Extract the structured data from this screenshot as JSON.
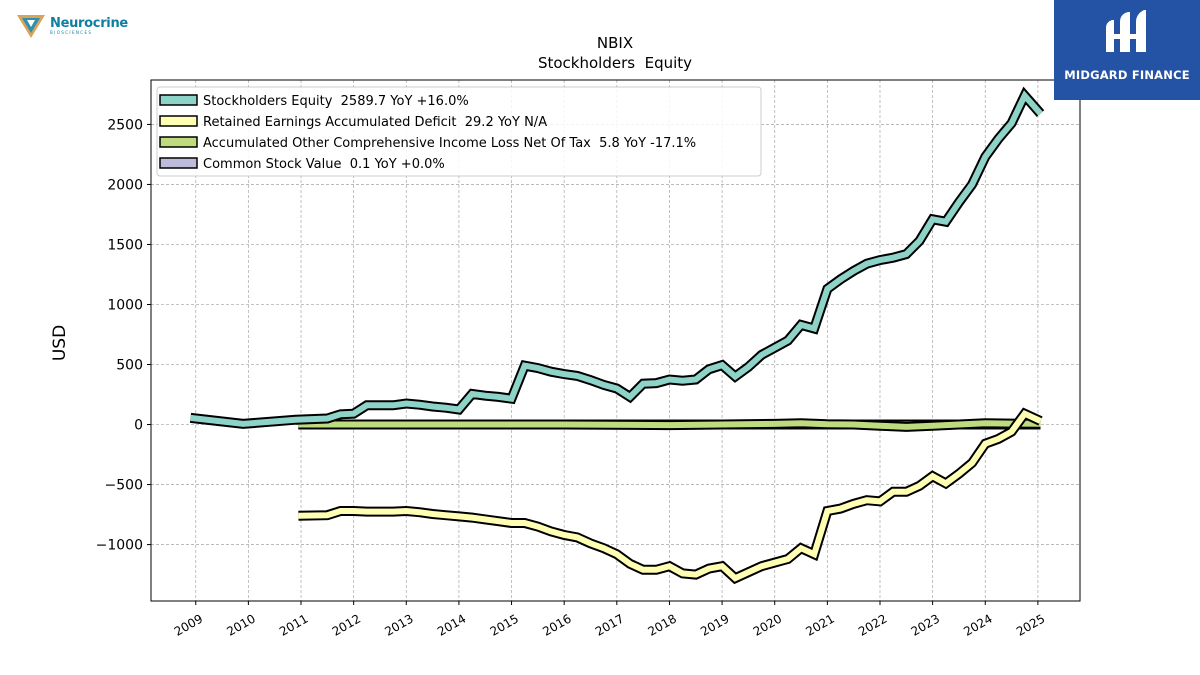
{
  "header": {
    "left_logo_name": "Neurocrine",
    "left_logo_sub": "BIOSCIENCES",
    "right_logo_name": "MIDGARD FINANCE"
  },
  "chart_data": {
    "type": "line",
    "title": "NBIX",
    "subtitle": "Stockholders  Equity",
    "ylabel": "USD",
    "xlabel": "",
    "ylim": [
      -1470,
      2870
    ],
    "xlim": [
      2008.15,
      2025.8
    ],
    "yticks": [
      -1000,
      -500,
      0,
      500,
      1000,
      1500,
      2000,
      2500
    ],
    "ytick_labels": [
      "−1000",
      "−500",
      "0",
      "500",
      "1000",
      "1500",
      "2000",
      "2500"
    ],
    "xticks": [
      "2009",
      "2010",
      "2011",
      "2012",
      "2013",
      "2014",
      "2015",
      "2016",
      "2017",
      "2018",
      "2019",
      "2020",
      "2021",
      "2022",
      "2023",
      "2024",
      "2025"
    ],
    "grid": true,
    "legend_position": "top-left",
    "series": [
      {
        "name": "Stockholders Equity",
        "legend": "Stockholders Equity  2589.7 YoY +16.0%",
        "color": "#8dd3c7",
        "x": [
          2008.9,
          2009.9,
          2010.9,
          2011.5,
          2011.75,
          2012.0,
          2012.25,
          2012.5,
          2012.75,
          2013.0,
          2013.25,
          2013.5,
          2013.75,
          2014.0,
          2014.25,
          2014.5,
          2014.75,
          2015.0,
          2015.25,
          2015.5,
          2015.75,
          2016.0,
          2016.25,
          2016.5,
          2016.75,
          2017.0,
          2017.25,
          2017.5,
          2017.75,
          2018.0,
          2018.25,
          2018.5,
          2018.75,
          2019.0,
          2019.25,
          2019.5,
          2019.75,
          2020.0,
          2020.25,
          2020.5,
          2020.75,
          2021.0,
          2021.25,
          2021.5,
          2021.75,
          2022.0,
          2022.25,
          2022.5,
          2022.75,
          2023.0,
          2023.25,
          2023.5,
          2023.75,
          2024.0,
          2024.25,
          2024.5,
          2024.75,
          2025.05
        ],
        "values": [
          55,
          5,
          40,
          50,
          85,
          90,
          160,
          160,
          160,
          175,
          165,
          150,
          140,
          125,
          255,
          240,
          230,
          215,
          490,
          470,
          440,
          420,
          405,
          370,
          330,
          300,
          230,
          340,
          345,
          375,
          365,
          375,
          460,
          495,
          400,
          480,
          580,
          640,
          700,
          830,
          800,
          1130,
          1210,
          1280,
          1340,
          1370,
          1390,
          1420,
          1530,
          1710,
          1690,
          1850,
          2000,
          2230,
          2380,
          2510,
          2740,
          2589.7
        ]
      },
      {
        "name": "Retained Earnings Accumulated Deficit",
        "legend": "Retained Earnings Accumulated Deficit  29.2 YoY N/A",
        "color": "#ffffb3",
        "x": [
          2010.95,
          2011.5,
          2011.75,
          2012.0,
          2012.25,
          2012.5,
          2012.75,
          2013.0,
          2013.25,
          2013.5,
          2013.75,
          2014.0,
          2014.25,
          2014.5,
          2014.75,
          2015.0,
          2015.25,
          2015.5,
          2015.75,
          2016.0,
          2016.25,
          2016.5,
          2016.75,
          2017.0,
          2017.25,
          2017.5,
          2017.75,
          2018.0,
          2018.25,
          2018.5,
          2018.75,
          2019.0,
          2019.25,
          2019.5,
          2019.75,
          2020.0,
          2020.25,
          2020.5,
          2020.75,
          2021.0,
          2021.25,
          2021.5,
          2021.75,
          2022.0,
          2022.25,
          2022.5,
          2022.75,
          2023.0,
          2023.25,
          2023.5,
          2023.75,
          2024.0,
          2024.25,
          2024.5,
          2024.75,
          2025.05
        ],
        "values": [
          -760,
          -755,
          -720,
          -720,
          -725,
          -725,
          -725,
          -720,
          -730,
          -745,
          -755,
          -765,
          -775,
          -790,
          -805,
          -820,
          -820,
          -850,
          -890,
          -920,
          -940,
          -990,
          -1030,
          -1080,
          -1160,
          -1210,
          -1210,
          -1180,
          -1240,
          -1250,
          -1200,
          -1180,
          -1280,
          -1230,
          -1180,
          -1150,
          -1120,
          -1030,
          -1080,
          -720,
          -700,
          -660,
          -630,
          -640,
          -560,
          -560,
          -510,
          -430,
          -490,
          -410,
          -320,
          -160,
          -120,
          -60,
          90,
          29.2
        ]
      },
      {
        "name": "Accumulated Other Comprehensive Income Loss Net Of Tax",
        "legend": "Accumulated Other Comprehensive Income Loss Net Of Tax  5.8 YoY -17.1%",
        "color": "#bedc7e",
        "x": [
          2010.95,
          2012.0,
          2014.0,
          2016.0,
          2018.0,
          2019.0,
          2020.0,
          2020.5,
          2021.0,
          2021.5,
          2022.0,
          2022.5,
          2023.0,
          2023.5,
          2024.0,
          2024.5,
          2025.05
        ],
        "values": [
          0,
          0,
          0,
          0,
          -5,
          0,
          5,
          10,
          3,
          0,
          -10,
          -20,
          -10,
          0,
          10,
          8,
          5.8
        ]
      },
      {
        "name": "Common Stock Value",
        "legend": "Common Stock Value  0.1 YoY +0.0%",
        "color": "#bebada",
        "x": [
          2010.95,
          2025.05
        ],
        "values": [
          0.1,
          0.1
        ]
      }
    ]
  }
}
